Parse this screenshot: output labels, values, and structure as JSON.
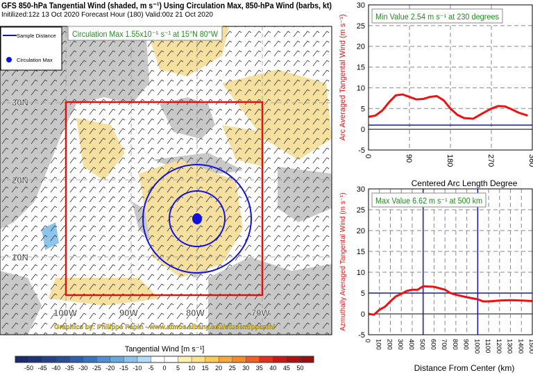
{
  "header": {
    "title": "GFS 850-hPa Tangential Wind (shaded, m s⁻¹) Using Circulation Max, 850-hPa Wind (barbs, kt)",
    "subtitle": "Initilized:12z 13 Oct 2020 Forecast Hour (180) Valid:00z 21 Oct 2020"
  },
  "map": {
    "legend": {
      "sample": "Sample Distance",
      "circ": "Circulation Max"
    },
    "annotation": "Circulation Max 1.55x10⁻⁵ s⁻¹ at 15°N 80°W",
    "lat_labels": [
      "30N",
      "20N",
      "10N"
    ],
    "lon_labels": [
      "100W",
      "90W",
      "80W",
      "70W"
    ],
    "credit": "Graphics by: Philippe Papin - www.atmos.albany.edu/student/ppapin/",
    "colors": {
      "land": "#c8c8c8",
      "pos": "#f5e0a0",
      "ring": "#1010e0",
      "box": "#e01010"
    }
  },
  "colorbar": {
    "title": "Tangential Wind [m s⁻¹]",
    "labels": [
      "-50",
      "-45",
      "-40",
      "-35",
      "-30",
      "-25",
      "-20",
      "-15",
      "-10",
      "-5",
      "0",
      "5",
      "10",
      "15",
      "20",
      "25",
      "30",
      "35",
      "40",
      "45",
      "50"
    ],
    "colors": [
      "#1a2a6c",
      "#1f3478",
      "#23408a",
      "#284d9a",
      "#2d5fae",
      "#3a73c0",
      "#4f8fd0",
      "#68a8de",
      "#8cc4ec",
      "#b4dcf6",
      "#ffffff",
      "#ffffff",
      "#fff0b0",
      "#fde08a",
      "#fbc85c",
      "#f8a83a",
      "#f48a2a",
      "#f06020",
      "#e03020",
      "#c81818",
      "#b01010",
      "#981010"
    ]
  },
  "chart_data": [
    {
      "type": "line",
      "title": "",
      "annotation": "Min Value 2.54 m s⁻¹ at 230 degrees",
      "xlabel": "Centered Arc Length Degree",
      "ylabel": "Arc Averaged Tangental Wind (m s⁻¹)",
      "xlim": [
        0,
        360
      ],
      "ylim": [
        -5,
        30
      ],
      "xticks": [
        "0",
        "90",
        "180",
        "270",
        "360"
      ],
      "yticks": [
        "-5",
        "0",
        "5",
        "10",
        "15",
        "20",
        "25",
        "30"
      ],
      "x": [
        0,
        15,
        30,
        45,
        60,
        75,
        90,
        105,
        120,
        135,
        150,
        165,
        180,
        195,
        210,
        230,
        250,
        270,
        285,
        300,
        315,
        330,
        350
      ],
      "y": [
        3,
        3.3,
        4.5,
        6.5,
        8.2,
        8.4,
        7.8,
        7.2,
        7.3,
        7.8,
        8,
        7,
        5,
        3.5,
        2.7,
        2.54,
        3.8,
        5,
        5.6,
        5.5,
        4.8,
        4,
        3.3
      ],
      "reference_y": 1,
      "grid": true
    },
    {
      "type": "line",
      "title": "",
      "annotation": "Max Value 6.62 m s⁻¹ at 500 km",
      "xlabel": "Distance From Center (km)",
      "ylabel": "Azmuthally Averaged Tangental Wind (m s⁻¹)",
      "xlim": [
        0,
        1500
      ],
      "ylim": [
        -5,
        30
      ],
      "xticks": [
        "0",
        "100",
        "200",
        "300",
        "400",
        "500",
        "600",
        "700",
        "800",
        "900",
        "1000",
        "1100",
        "1200",
        "1300",
        "1400",
        "1500"
      ],
      "yticks": [
        "-5",
        "0",
        "5",
        "10",
        "15",
        "20",
        "25",
        "30"
      ],
      "x": [
        0,
        50,
        100,
        150,
        200,
        250,
        300,
        350,
        400,
        450,
        500,
        600,
        700,
        750,
        800,
        900,
        1000,
        1050,
        1100,
        1200,
        1300,
        1400,
        1500
      ],
      "y": [
        0,
        -0.2,
        1,
        1.7,
        3,
        4.2,
        4.8,
        5.5,
        5.8,
        5.8,
        6.62,
        6.5,
        5.8,
        5,
        4.6,
        4,
        3.5,
        3,
        3,
        3.2,
        3.3,
        3.2,
        3.1
      ],
      "reference_x": [
        500,
        1000
      ],
      "reference_y": 5,
      "grid": true
    }
  ]
}
